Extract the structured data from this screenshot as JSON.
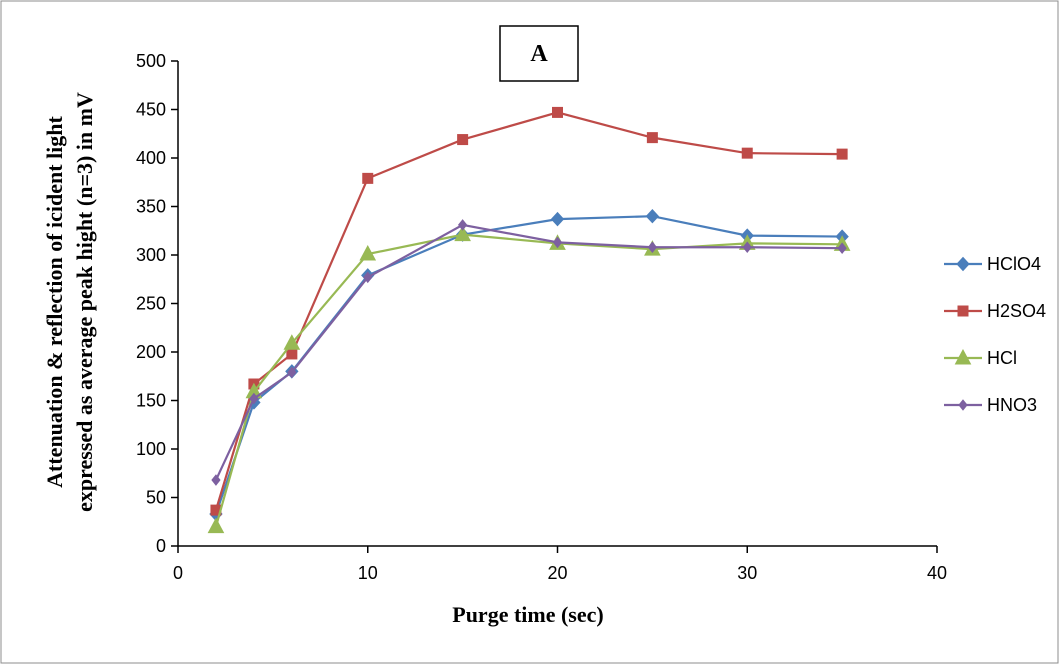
{
  "chart_data": {
    "type": "line",
    "title": "",
    "panel_label": "A",
    "xlabel": "Purge time (sec)",
    "ylabel_lines": [
      "Attenuation & reflection of icident light",
      "expressed as average peak hight (n=3) in mV"
    ],
    "xlim": [
      0,
      40
    ],
    "ylim": [
      0,
      500
    ],
    "x_ticks": [
      0,
      10,
      20,
      30,
      40
    ],
    "y_ticks": [
      0,
      50,
      100,
      150,
      200,
      250,
      300,
      350,
      400,
      450,
      500
    ],
    "grid": false,
    "legend_position": "right",
    "x": [
      2,
      4,
      6,
      10,
      15,
      20,
      25,
      30,
      35
    ],
    "series": [
      {
        "name": "HClO4",
        "color": "#4a7ebb",
        "marker": "diamond",
        "values": [
          33,
          148,
          180,
          279,
          321,
          337,
          340,
          320,
          319
        ]
      },
      {
        "name": "H2SO4",
        "color": "#be4b48",
        "marker": "square",
        "values": [
          37,
          167,
          198,
          379,
          419,
          447,
          421,
          405,
          404
        ]
      },
      {
        "name": "HCl",
        "color": "#98b954",
        "marker": "triangle",
        "values": [
          20,
          159,
          209,
          301,
          321,
          312,
          306,
          312,
          311
        ]
      },
      {
        "name": "HNO3",
        "color": "#7d60a0",
        "marker": "diamond-small",
        "values": [
          68,
          152,
          179,
          277,
          331,
          313,
          308,
          308,
          307
        ]
      }
    ]
  }
}
